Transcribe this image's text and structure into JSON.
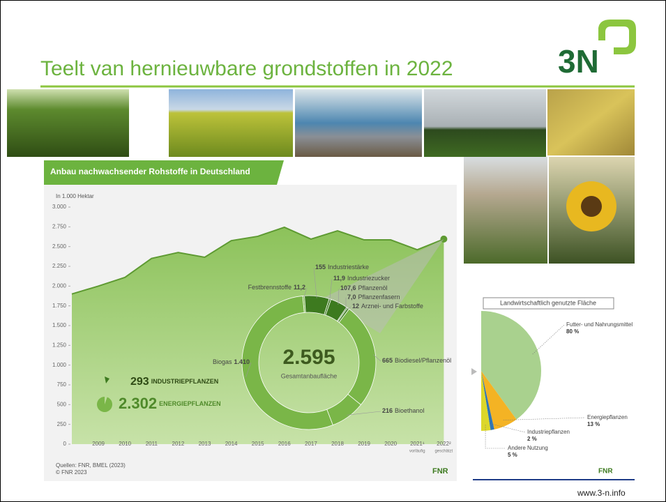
{
  "slide": {
    "title": "Teelt van hernieuwbare grondstoffen in 2022",
    "logo": "3N",
    "url": "www.3-n.info"
  },
  "chart_data": [
    {
      "type": "area",
      "title": "Anbau nachwachsender Rohstoffe in Deutschland",
      "y_label": "In 1.000 Hektar",
      "categories": [
        null,
        "2009",
        "2010",
        "2011",
        "2012",
        "2013",
        "2014",
        "2015",
        "2016",
        "2017",
        "2018",
        "2019",
        "2020",
        "2021¹",
        "2022²"
      ],
      "category_notes": [
        null,
        null,
        null,
        null,
        null,
        null,
        null,
        null,
        null,
        null,
        null,
        null,
        null,
        "vorläufig",
        "geschätzt"
      ],
      "values": [
        1900,
        2000,
        2110,
        2350,
        2425,
        2365,
        2575,
        2630,
        2745,
        2595,
        2700,
        2585,
        2585,
        2460,
        2595
      ],
      "color": "#7ab648",
      "line_color": "#5e9a32",
      "ylim": [
        0,
        3000
      ],
      "yticks": [
        {
          "value": 0,
          "label": "0"
        },
        250,
        500,
        750,
        {
          "value": 1000,
          "label": "1.000"
        },
        {
          "value": 1250,
          "label": "1.250"
        },
        {
          "value": 1500,
          "label": "1.500"
        },
        {
          "value": 1750,
          "label": "1.750"
        },
        {
          "value": 2000,
          "label": "2.000"
        },
        {
          "value": 2250,
          "label": "2.250"
        },
        {
          "value": 2500,
          "label": "2.500"
        },
        {
          "value": 2750,
          "label": "2.750"
        },
        {
          "value": 3000,
          "label": "3.000"
        }
      ],
      "sources": [
        "Quellen: FNR, BMEL (2023)",
        "© FNR 2023"
      ],
      "logo": "FNR"
    },
    {
      "type": "donut",
      "center_value": 2595,
      "center_value_label": "2.595",
      "center_label": "Gesamtanbaufläche",
      "categories": [
        "Festbrennstoffe",
        "Industriestärke",
        "Industriezucker",
        "Pflanzenöl",
        "Pflanzenfasern",
        "Arznei- und Farbstoffe",
        "Biodiesel/Pflanzenöl",
        "Bioethanol",
        "Biogas"
      ],
      "values": [
        11.2,
        155,
        11.9,
        107.6,
        7,
        12,
        665,
        216,
        1410
      ],
      "value_labels": [
        "11,2",
        "155",
        "11,9",
        "107,6",
        "7,0",
        "12",
        "665",
        "216",
        "1.410"
      ],
      "colors": [
        "#7ab648",
        "#3d7a1f",
        "#3d7a1f",
        "#3d7a1f",
        "#3d7a1f",
        "#3d7a1f",
        "#7ab648",
        "#7ab648",
        "#7ab648"
      ],
      "groups": [
        {
          "name": "INDUSTRIEPFLANZEN",
          "value": 293,
          "value_label": "293",
          "color": "#3d7a1f"
        },
        {
          "name": "ENERGIEPFLANZEN",
          "value": 2302,
          "value_label": "2.302",
          "color": "#7ab648"
        }
      ]
    },
    {
      "type": "pie",
      "title": "Landwirtschaftlich genutzte Fläche",
      "categories": [
        "Futter- und Nahrungsmittel",
        "Energiepflanzen",
        "Industriepflanzen",
        "Andere Nutzung"
      ],
      "values": [
        80,
        13,
        2,
        5
      ],
      "value_labels": [
        "80 %",
        "13 %",
        "2 %",
        "5 %"
      ],
      "colors": [
        "#a9d18e",
        "#f4b324",
        "#2e75b6",
        "#dcd72a"
      ],
      "logo": "FNR"
    }
  ]
}
